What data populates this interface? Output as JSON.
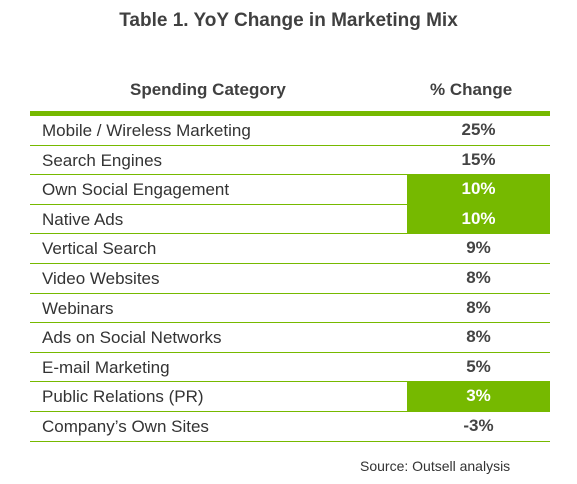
{
  "title": "Table 1. YoY Change in Marketing Mix",
  "source": "Source: Outsell analysis",
  "colors": {
    "accent": "#76b900",
    "text": "#333333"
  },
  "chart_data": {
    "type": "table",
    "title": "Table 1. YoY Change in Marketing Mix",
    "columns": [
      "Spending Category",
      "% Change"
    ],
    "rows": [
      {
        "category": "Mobile / Wireless Marketing",
        "change": "25%",
        "value": 25,
        "highlight": false
      },
      {
        "category": "Search Engines",
        "change": "15%",
        "value": 15,
        "highlight": false
      },
      {
        "category": "Own Social Engagement",
        "change": "10%",
        "value": 10,
        "highlight": true
      },
      {
        "category": "Native Ads",
        "change": "10%",
        "value": 10,
        "highlight": true
      },
      {
        "category": "Vertical Search",
        "change": "9%",
        "value": 9,
        "highlight": false
      },
      {
        "category": "Video Websites",
        "change": "8%",
        "value": 8,
        "highlight": false
      },
      {
        "category": "Webinars",
        "change": "8%",
        "value": 8,
        "highlight": false
      },
      {
        "category": "Ads on Social Networks",
        "change": "8%",
        "value": 8,
        "highlight": false
      },
      {
        "category": "E-mail Marketing",
        "change": "5%",
        "value": 5,
        "highlight": false
      },
      {
        "category": "Public Relations (PR)",
        "change": "3%",
        "value": 3,
        "highlight": true
      },
      {
        "category": "Company’s Own Sites",
        "change": "-3%",
        "value": -3,
        "highlight": false
      }
    ]
  }
}
